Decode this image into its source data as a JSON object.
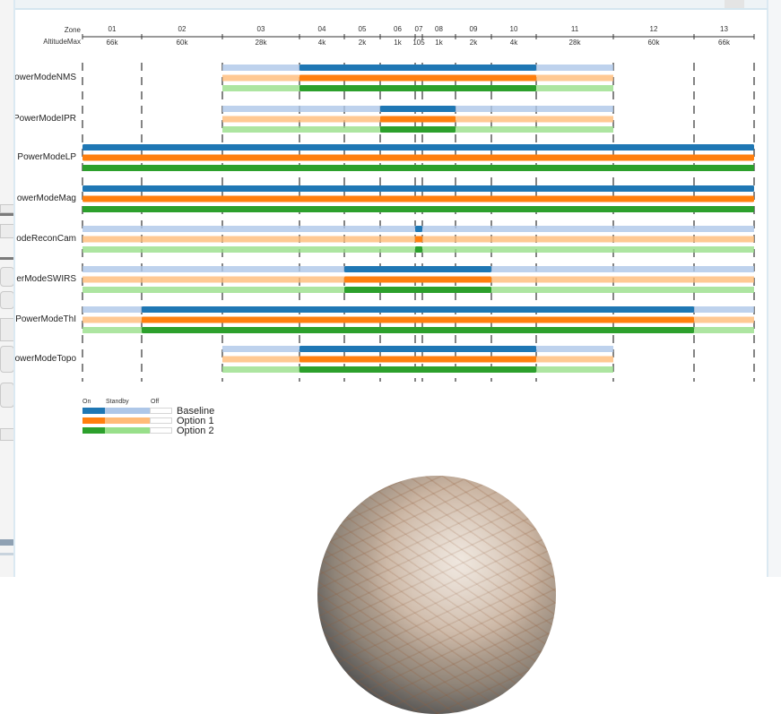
{
  "header": {
    "zone_label": "Zone",
    "altitude_label": "AltitudeMax",
    "zones": [
      "01",
      "02",
      "03",
      "04",
      "05",
      "06",
      "07",
      "08",
      "09",
      "10",
      "11",
      "12",
      "13"
    ],
    "altitudes": [
      "66k",
      "60k",
      "28k",
      "4k",
      "2k",
      "1k",
      "105",
      "1k",
      "2k",
      "4k",
      "28k",
      "60k",
      "66k"
    ]
  },
  "rows": [
    {
      "label": "owerModeNMS"
    },
    {
      "label": "PowerModeIPR"
    },
    {
      "label": "PowerModeLP"
    },
    {
      "label": "owerModeMag"
    },
    {
      "label": "odeReconCam"
    },
    {
      "label": "erModeSWIRS"
    },
    {
      "label": "PowerModeThI"
    },
    {
      "label": "owerModeTopo"
    }
  ],
  "legend": {
    "states": [
      "On",
      "Standby",
      "Off"
    ],
    "options": [
      {
        "name": "Baseline",
        "color": "#1f77b4",
        "light": "#aec7e8"
      },
      {
        "name": "Option 1",
        "color": "#ff7f0e",
        "light": "#ffbb78"
      },
      {
        "name": "Option 2",
        "color": "#2ca02c",
        "light": "#98df8a"
      }
    ]
  },
  "power_schedule": [
    {
      "row": "NMS",
      "standby_zones": [
        "03",
        "11"
      ],
      "on_zones": [
        "04",
        "10"
      ]
    },
    {
      "row": "IPR",
      "standby_zones": [
        "03",
        "11"
      ],
      "on_zones": [
        "06",
        "08"
      ]
    },
    {
      "row": "LP",
      "standby_zones": [],
      "on_zones": [
        "01",
        "13"
      ]
    },
    {
      "row": "Mag",
      "standby_zones": [],
      "on_zones": [
        "01",
        "13"
      ]
    },
    {
      "row": "ReconCam",
      "standby_zones": [
        "01",
        "13"
      ],
      "on_zones": [
        "07",
        "07"
      ]
    },
    {
      "row": "SWIRS",
      "standby_zones": [
        "01",
        "13"
      ],
      "on_zones": [
        "05",
        "09"
      ]
    },
    {
      "row": "ThI",
      "standby_zones": [
        "01",
        "13"
      ],
      "on_zones": [
        "02",
        "12"
      ]
    },
    {
      "row": "Topo",
      "standby_zones": [
        "03",
        "11"
      ],
      "on_zones": [
        "04",
        "10"
      ]
    }
  ]
}
